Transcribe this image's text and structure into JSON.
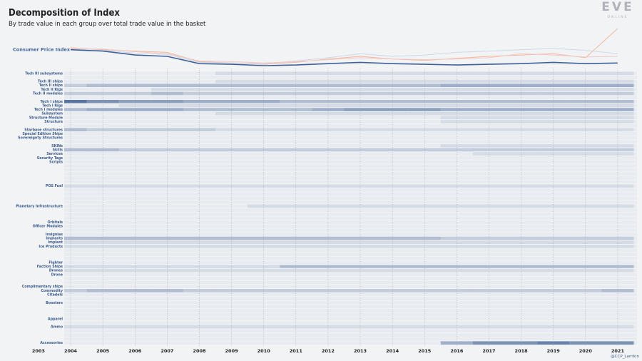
{
  "branding": {
    "logo": "EVE",
    "logo_sub": "ONLINE",
    "credit": "@CCP_Larrikin"
  },
  "chart_data": [
    {
      "type": "line",
      "title": "Decomposition of Index",
      "subtitle": "By trade value in each group over total trade value in the basket",
      "x": [
        2004,
        2005,
        2006,
        2007,
        2008,
        2009,
        2010,
        2011,
        2012,
        2013,
        2014,
        2015,
        2016,
        2017,
        2018,
        2019,
        2020,
        2021
      ],
      "xlim": [
        2003.8,
        2021.6
      ],
      "series": [
        {
          "color": "#f3b79a",
          "values": [
            121,
            118,
            116,
            114,
            100,
            98,
            96,
            99,
            104,
            108,
            104,
            102,
            105,
            108,
            110,
            112,
            106,
            150
          ]
        },
        {
          "color": "#cfd9e8",
          "values": [
            119,
            117,
            113,
            111,
            99,
            98,
            97,
            101,
            106,
            112,
            108,
            110,
            114,
            116,
            118,
            120,
            117,
            112
          ]
        },
        {
          "color": "#f0c9c9",
          "values": [
            120,
            119,
            115,
            112,
            101,
            100,
            98,
            100,
            103,
            106,
            104,
            103,
            104,
            106,
            112,
            110,
            107,
            108
          ]
        },
        {
          "name": "Consumer Price Index",
          "color": "#3d6299",
          "values": [
            118,
            116,
            110,
            108,
            97,
            96,
            94,
            95,
            97,
            99,
            97,
            96,
            95,
            96,
            97,
            99,
            97,
            98
          ]
        }
      ]
    },
    {
      "type": "heatmap",
      "color": "#3d5f94",
      "x": [
        2004,
        2005,
        2006,
        2007,
        2008,
        2009,
        2010,
        2011,
        2012,
        2013,
        2014,
        2015,
        2016,
        2017,
        2018,
        2019,
        2020,
        2021
      ],
      "xlim": [
        2003.8,
        2021.6
      ],
      "xticks": [
        2003,
        2004,
        2005,
        2006,
        2007,
        2008,
        2009,
        2010,
        2011,
        2012,
        2013,
        2014,
        2015,
        2016,
        2017,
        2018,
        2019,
        2020,
        2021
      ],
      "rows": [
        {
          "name": "Tech III subsystems",
          "values": [
            0,
            0,
            0,
            0,
            0,
            1,
            1,
            1,
            1,
            1,
            1,
            1,
            1,
            1,
            1,
            1,
            1,
            1
          ]
        },
        {
          "name": "Tech III ships",
          "values": [
            0,
            0,
            0,
            0,
            0,
            1,
            1,
            1,
            1,
            1,
            1,
            1,
            1,
            1,
            1,
            1,
            1,
            1
          ]
        },
        {
          "name": "Tech II ships",
          "values": [
            2,
            3,
            3,
            3,
            3,
            3,
            3,
            3,
            3,
            3,
            3,
            3,
            4,
            4,
            4,
            4,
            4,
            4
          ]
        },
        {
          "name": "Tech II Rigs",
          "values": [
            0,
            0,
            0,
            1,
            1,
            1,
            1,
            1,
            1,
            1,
            1,
            1,
            1,
            1,
            1,
            1,
            1,
            1
          ]
        },
        {
          "name": "Tech II modules",
          "values": [
            2,
            2,
            2,
            3,
            2,
            2,
            2,
            2,
            2,
            2,
            2,
            2,
            2,
            2,
            2,
            2,
            2,
            2
          ]
        },
        {
          "name": "Tech I ships",
          "values": [
            8,
            6,
            5,
            5,
            4,
            4,
            4,
            3,
            3,
            3,
            3,
            3,
            3,
            3,
            3,
            3,
            3,
            3
          ]
        },
        {
          "name": "Tech I Rigs",
          "values": [
            0,
            0,
            1,
            1,
            1,
            1,
            1,
            1,
            1,
            1,
            1,
            1,
            1,
            1,
            1,
            1,
            1,
            1
          ]
        },
        {
          "name": "Tech I modules",
          "values": [
            3,
            4,
            4,
            4,
            3,
            3,
            3,
            3,
            4,
            5,
            5,
            5,
            4,
            4,
            4,
            4,
            4,
            4
          ]
        },
        {
          "name": "Subsystem",
          "values": [
            0,
            0,
            0,
            0,
            0,
            1,
            1,
            1,
            1,
            1,
            1,
            1,
            1,
            1,
            1,
            1,
            1,
            1
          ]
        },
        {
          "name": "Structure Module",
          "values": [
            0,
            0,
            0,
            0,
            0,
            0,
            0,
            0,
            0,
            0,
            0,
            0,
            1,
            1,
            1,
            1,
            1,
            1
          ]
        },
        {
          "name": "Structure",
          "values": [
            0,
            0,
            0,
            0,
            0,
            0,
            0,
            0,
            0,
            0,
            0,
            0,
            1,
            1,
            1,
            1,
            1,
            1
          ]
        },
        {
          "name": "Starbase structures",
          "values": [
            3,
            2,
            2,
            2,
            2,
            1,
            1,
            1,
            1,
            1,
            1,
            1,
            1,
            1,
            1,
            1,
            1,
            1
          ]
        },
        {
          "name": "Special Edition Ships",
          "values": [
            0,
            0,
            0,
            0,
            0,
            0,
            0,
            0,
            0,
            0,
            0,
            0,
            0,
            0,
            0,
            0,
            0,
            0
          ]
        },
        {
          "name": "Sovereignty Structures",
          "values": [
            0,
            0,
            0,
            0,
            0,
            0,
            0,
            0,
            0,
            0,
            0,
            0,
            0,
            0,
            0,
            0,
            0,
            0
          ]
        },
        {
          "name": "SKINs",
          "values": [
            0,
            0,
            0,
            0,
            0,
            0,
            0,
            0,
            0,
            0,
            0,
            0,
            1,
            1,
            1,
            1,
            1,
            1
          ]
        },
        {
          "name": "Skills",
          "values": [
            3,
            3,
            2,
            2,
            2,
            2,
            2,
            2,
            2,
            2,
            2,
            2,
            2,
            2,
            2,
            2,
            2,
            2
          ]
        },
        {
          "name": "Services",
          "values": [
            0,
            0,
            0,
            0,
            0,
            0,
            0,
            0,
            0,
            0,
            0,
            0,
            0,
            1,
            1,
            1,
            1,
            1
          ]
        },
        {
          "name": "Security Tags",
          "values": [
            0,
            0,
            0,
            0,
            0,
            0,
            0,
            0,
            0,
            0,
            0,
            0,
            0,
            0,
            0,
            0,
            0,
            0
          ]
        },
        {
          "name": "Scripts",
          "values": [
            0,
            0,
            0,
            0,
            0,
            0,
            0,
            0,
            0,
            0,
            0,
            0,
            0,
            0,
            0,
            0,
            0,
            0
          ]
        },
        {
          "name": "POS Fuel",
          "values": [
            1,
            1,
            1,
            1,
            1,
            1,
            1,
            1,
            1,
            1,
            1,
            1,
            1,
            1,
            1,
            1,
            1,
            1
          ]
        },
        {
          "name": "Planetary Infrastructure",
          "values": [
            0,
            0,
            0,
            0,
            0,
            0,
            1,
            1,
            1,
            1,
            1,
            1,
            1,
            1,
            1,
            1,
            1,
            1
          ]
        },
        {
          "name": "Orbitals",
          "values": [
            0,
            0,
            0,
            0,
            0,
            0,
            0,
            0,
            0,
            0,
            0,
            0,
            0,
            0,
            0,
            0,
            0,
            0
          ]
        },
        {
          "name": "Officer Modules",
          "values": [
            0,
            0,
            0,
            0,
            0,
            0,
            0,
            0,
            0,
            0,
            0,
            0,
            0,
            0,
            0,
            0,
            0,
            0
          ]
        },
        {
          "name": "Insignias",
          "values": [
            0,
            0,
            0,
            0,
            0,
            0,
            0,
            0,
            0,
            0,
            0,
            0,
            0,
            0,
            0,
            0,
            0,
            0
          ]
        },
        {
          "name": "Implants",
          "values": [
            3,
            3,
            3,
            3,
            3,
            3,
            3,
            3,
            3,
            3,
            3,
            3,
            2,
            2,
            2,
            2,
            2,
            2
          ]
        },
        {
          "name": "Implant",
          "values": [
            1,
            1,
            1,
            1,
            1,
            1,
            1,
            1,
            1,
            1,
            1,
            1,
            1,
            1,
            1,
            1,
            1,
            1
          ]
        },
        {
          "name": "Ice Products",
          "values": [
            1,
            1,
            1,
            1,
            1,
            1,
            1,
            1,
            1,
            1,
            1,
            1,
            1,
            1,
            1,
            1,
            1,
            1
          ]
        },
        {
          "name": "Fighter",
          "values": [
            0,
            0,
            0,
            0,
            0,
            0,
            0,
            0,
            0,
            0,
            0,
            0,
            0,
            0,
            0,
            0,
            0,
            0
          ]
        },
        {
          "name": "Faction Ships",
          "values": [
            1,
            1,
            1,
            1,
            1,
            1,
            1,
            3,
            3,
            3,
            3,
            3,
            3,
            3,
            3,
            3,
            3,
            3
          ]
        },
        {
          "name": "Drones",
          "values": [
            1,
            1,
            1,
            1,
            1,
            1,
            1,
            1,
            1,
            1,
            1,
            1,
            1,
            1,
            1,
            1,
            1,
            1
          ]
        },
        {
          "name": "Drone",
          "values": [
            0,
            0,
            0,
            0,
            0,
            0,
            0,
            0,
            0,
            0,
            0,
            0,
            0,
            0,
            0,
            0,
            0,
            0
          ]
        },
        {
          "name": "Complimentary ships",
          "values": [
            0,
            0,
            0,
            0,
            0,
            0,
            0,
            0,
            0,
            0,
            0,
            0,
            0,
            0,
            0,
            0,
            0,
            0
          ]
        },
        {
          "name": "Commodity",
          "values": [
            2,
            3,
            3,
            3,
            2,
            2,
            2,
            2,
            2,
            2,
            2,
            2,
            2,
            2,
            2,
            2,
            2,
            3
          ]
        },
        {
          "name": "Citadels",
          "values": [
            0,
            0,
            0,
            0,
            0,
            0,
            0,
            0,
            0,
            0,
            0,
            0,
            0,
            0,
            0,
            0,
            0,
            0
          ]
        },
        {
          "name": "Boosters",
          "values": [
            0,
            0,
            0,
            0,
            0,
            0,
            0,
            0,
            0,
            0,
            0,
            0,
            0,
            0,
            0,
            0,
            0,
            0
          ]
        },
        {
          "name": "Apparel",
          "values": [
            0,
            0,
            0,
            0,
            0,
            0,
            0,
            0,
            0,
            0,
            0,
            0,
            0,
            0,
            0,
            0,
            0,
            0
          ]
        },
        {
          "name": "Ammo",
          "values": [
            1,
            1,
            1,
            1,
            1,
            1,
            1,
            1,
            1,
            1,
            1,
            1,
            1,
            1,
            1,
            1,
            1,
            1
          ]
        },
        {
          "name": "Accessories",
          "values": [
            0,
            0,
            0,
            0,
            0,
            0,
            0,
            0,
            0,
            0,
            0,
            0,
            4,
            6,
            6,
            7,
            6,
            6
          ]
        }
      ]
    }
  ]
}
